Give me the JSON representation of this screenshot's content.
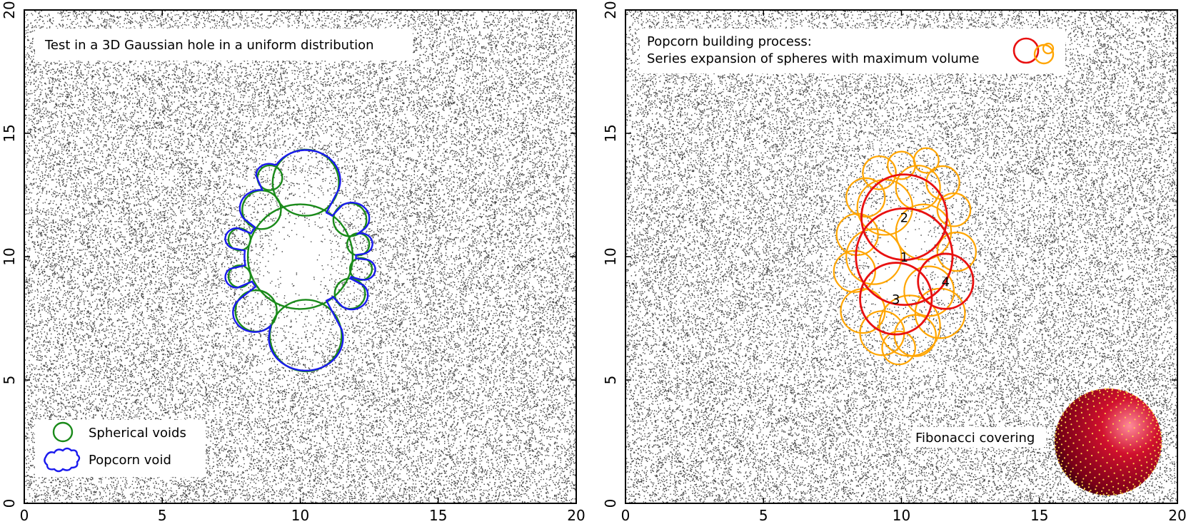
{
  "colors": {
    "points": "#444444",
    "spherical_void": "#1a8a1a",
    "popcorn_void": "#1a1aee",
    "sphere_primary": "#e81010",
    "sphere_secondary": "#ffa500",
    "fibonacci_sphere": "#c0102a",
    "fibonacci_dots": "#ffd24a"
  },
  "chart_data": [
    {
      "type": "scatter",
      "title": "",
      "xlim": [
        0,
        20
      ],
      "ylim": [
        0,
        20
      ],
      "x_ticks": [
        "0",
        "5",
        "10",
        "15",
        "20"
      ],
      "y_ticks": [
        "0",
        "5",
        "10",
        "15",
        "20"
      ],
      "grid": false,
      "annotation": "Test in a 3D Gaussian hole in a uniform distribution",
      "legend_position": "bottom-left",
      "legend": [
        {
          "label": "Spherical voids",
          "symbol": "circle-icon"
        },
        {
          "label": "Popcorn void",
          "symbol": "popcorn-outline-icon"
        }
      ],
      "hole": {
        "center": [
          10,
          10
        ],
        "sigma_x": 1.5,
        "sigma_y": 3.0
      },
      "spherical_voids": [
        {
          "cx": 10.0,
          "cy": 10.0,
          "r": 1.9
        },
        {
          "cx": 10.2,
          "cy": 13.0,
          "r": 1.2
        },
        {
          "cx": 10.2,
          "cy": 6.8,
          "r": 1.3
        },
        {
          "cx": 8.6,
          "cy": 11.9,
          "r": 0.7
        },
        {
          "cx": 8.4,
          "cy": 7.8,
          "r": 0.75
        },
        {
          "cx": 8.9,
          "cy": 13.2,
          "r": 0.45
        },
        {
          "cx": 7.8,
          "cy": 10.7,
          "r": 0.4
        },
        {
          "cx": 7.8,
          "cy": 9.2,
          "r": 0.4
        },
        {
          "cx": 11.8,
          "cy": 11.5,
          "r": 0.6
        },
        {
          "cx": 12.1,
          "cy": 10.5,
          "r": 0.4
        },
        {
          "cx": 12.2,
          "cy": 9.5,
          "r": 0.4
        },
        {
          "cx": 11.8,
          "cy": 8.5,
          "r": 0.55
        }
      ]
    },
    {
      "type": "scatter",
      "title": "",
      "xlim": [
        0,
        20
      ],
      "ylim": [
        0,
        20
      ],
      "x_ticks": [
        "0",
        "5",
        "10",
        "15",
        "20"
      ],
      "y_ticks": [
        "0",
        "5",
        "10",
        "15",
        "20"
      ],
      "grid": false,
      "annotation_lines": [
        "Popcorn building process:",
        "Series expansion of spheres with maximum volume"
      ],
      "inset_label": "Fibonacci covering",
      "hole": {
        "center": [
          10,
          10
        ],
        "sigma_x": 1.5,
        "sigma_y": 3.0
      },
      "primary_spheres": [
        {
          "label": "1",
          "cx": 10.1,
          "cy": 10.0,
          "r": 1.75
        },
        {
          "label": "2",
          "cx": 10.1,
          "cy": 11.6,
          "r": 1.55
        },
        {
          "label": "3",
          "cx": 9.8,
          "cy": 8.3,
          "r": 1.3
        },
        {
          "label": "4",
          "cx": 11.6,
          "cy": 9.0,
          "r": 1.0
        }
      ],
      "secondary_spheres": [
        {
          "cx": 9.2,
          "cy": 13.4,
          "r": 0.6
        },
        {
          "cx": 10.0,
          "cy": 13.7,
          "r": 0.5
        },
        {
          "cx": 10.9,
          "cy": 13.9,
          "r": 0.45
        },
        {
          "cx": 11.5,
          "cy": 13.0,
          "r": 0.6
        },
        {
          "cx": 8.7,
          "cy": 12.4,
          "r": 0.7
        },
        {
          "cx": 11.9,
          "cy": 11.9,
          "r": 0.6
        },
        {
          "cx": 8.4,
          "cy": 10.9,
          "r": 0.75
        },
        {
          "cx": 12.0,
          "cy": 10.2,
          "r": 0.7
        },
        {
          "cx": 8.3,
          "cy": 9.4,
          "r": 0.75
        },
        {
          "cx": 8.6,
          "cy": 7.8,
          "r": 0.8
        },
        {
          "cx": 11.4,
          "cy": 7.7,
          "r": 0.9
        },
        {
          "cx": 9.3,
          "cy": 6.9,
          "r": 0.8
        },
        {
          "cx": 10.5,
          "cy": 6.8,
          "r": 0.75
        },
        {
          "cx": 9.9,
          "cy": 6.3,
          "r": 0.6
        },
        {
          "cx": 10.3,
          "cy": 7.2,
          "r": 1.1
        },
        {
          "cx": 9.4,
          "cy": 12.0,
          "r": 1.0
        },
        {
          "cx": 10.8,
          "cy": 11.0,
          "r": 1.0
        },
        {
          "cx": 9.0,
          "cy": 10.0,
          "r": 1.0
        },
        {
          "cx": 11.0,
          "cy": 8.6,
          "r": 0.9
        },
        {
          "cx": 10.6,
          "cy": 12.8,
          "r": 0.8
        }
      ],
      "legend_circles": [
        {
          "role": "red-circle-icon"
        },
        {
          "role": "orange-circle-icon"
        },
        {
          "role": "orange-circle-small-icon"
        }
      ]
    }
  ]
}
